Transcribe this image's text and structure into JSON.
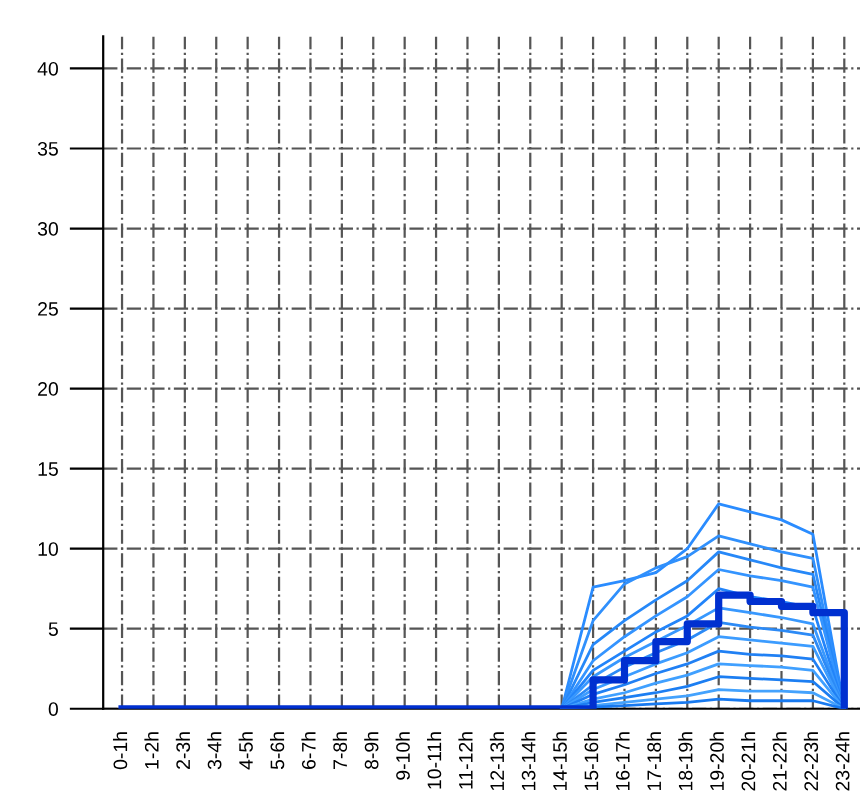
{
  "chart_data": {
    "type": "line",
    "categories": [
      "0-1h",
      "1-2h",
      "2-3h",
      "3-4h",
      "4-5h",
      "5-6h",
      "6-7h",
      "7-8h",
      "8-9h",
      "9-10h",
      "10-11h",
      "11-12h",
      "12-13h",
      "13-14h",
      "14-15h",
      "15-16h",
      "16-17h",
      "17-18h",
      "18-19h",
      "19-20h",
      "20-21h",
      "21-22h",
      "22-23h",
      "23-24h"
    ],
    "ylim": [
      0,
      42
    ],
    "yticks": [
      0,
      5,
      10,
      15,
      20,
      25,
      30,
      35,
      40
    ],
    "grid": true,
    "marker": "none",
    "line_style": "solid",
    "legend": false,
    "series": [
      {
        "color": "#2a8cff",
        "values": [
          null,
          null,
          null,
          null,
          null,
          null,
          null,
          null,
          null,
          null,
          null,
          null,
          null,
          null,
          0,
          7.6,
          8.0,
          8.5,
          10.0,
          12.8,
          12.3,
          11.8,
          10.9,
          0
        ]
      },
      {
        "color": "#3090fc",
        "values": [
          null,
          null,
          null,
          null,
          null,
          null,
          null,
          null,
          null,
          null,
          null,
          null,
          null,
          null,
          0,
          5.5,
          7.8,
          8.8,
          9.5,
          10.8,
          10.3,
          9.8,
          9.4,
          0
        ]
      },
      {
        "color": "#2688f8",
        "values": [
          null,
          null,
          null,
          null,
          null,
          null,
          null,
          null,
          null,
          null,
          null,
          null,
          null,
          null,
          0,
          4.0,
          5.5,
          6.8,
          8.0,
          9.8,
          9.3,
          8.8,
          8.4,
          0
        ]
      },
      {
        "color": "#3494ff",
        "values": [
          null,
          null,
          null,
          null,
          null,
          null,
          null,
          null,
          null,
          null,
          null,
          null,
          null,
          null,
          0,
          3.0,
          4.5,
          5.8,
          7.0,
          8.7,
          8.3,
          8.0,
          7.6,
          0
        ]
      },
      {
        "color": "#2284fa",
        "values": [
          null,
          null,
          null,
          null,
          null,
          null,
          null,
          null,
          null,
          null,
          null,
          null,
          null,
          null,
          0,
          2.4,
          3.6,
          4.8,
          5.8,
          7.5,
          7.0,
          6.7,
          6.3,
          0
        ]
      },
      {
        "color": "#3898fe",
        "values": [
          null,
          null,
          null,
          null,
          null,
          null,
          null,
          null,
          null,
          null,
          null,
          null,
          null,
          null,
          0,
          2.0,
          3.2,
          4.2,
          5.2,
          6.3,
          6.0,
          5.7,
          5.3,
          0
        ]
      },
      {
        "color": "#2c8af6",
        "values": [
          null,
          null,
          null,
          null,
          null,
          null,
          null,
          null,
          null,
          null,
          null,
          null,
          null,
          null,
          0,
          1.5,
          2.6,
          3.5,
          4.3,
          5.4,
          5.1,
          4.9,
          4.6,
          0
        ]
      },
      {
        "color": "#3c9cff",
        "values": [
          null,
          null,
          null,
          null,
          null,
          null,
          null,
          null,
          null,
          null,
          null,
          null,
          null,
          null,
          0,
          1.2,
          2.0,
          2.8,
          3.5,
          4.5,
          4.3,
          4.1,
          3.9,
          0
        ]
      },
      {
        "color": "#2080f4",
        "values": [
          null,
          null,
          null,
          null,
          null,
          null,
          null,
          null,
          null,
          null,
          null,
          null,
          null,
          null,
          0,
          0.9,
          1.5,
          2.2,
          2.8,
          3.6,
          3.4,
          3.3,
          3.1,
          0
        ]
      },
      {
        "color": "#40a0ff",
        "values": [
          null,
          null,
          null,
          null,
          null,
          null,
          null,
          null,
          null,
          null,
          null,
          null,
          null,
          null,
          0,
          0.6,
          1.0,
          1.6,
          2.1,
          2.8,
          2.7,
          2.6,
          2.4,
          0
        ]
      },
      {
        "color": "#1c7ef2",
        "values": [
          null,
          null,
          null,
          null,
          null,
          null,
          null,
          null,
          null,
          null,
          null,
          null,
          null,
          null,
          0,
          0.4,
          0.7,
          1.0,
          1.4,
          2.0,
          1.9,
          1.8,
          1.7,
          0
        ]
      },
      {
        "color": "#44a2fd",
        "values": [
          null,
          null,
          null,
          null,
          null,
          null,
          null,
          null,
          null,
          null,
          null,
          null,
          null,
          null,
          0,
          0.2,
          0.4,
          0.6,
          0.8,
          1.2,
          1.1,
          1.1,
          1.0,
          0
        ]
      },
      {
        "color": "#187af0",
        "values": [
          null,
          null,
          null,
          null,
          null,
          null,
          null,
          null,
          null,
          null,
          null,
          null,
          null,
          null,
          0,
          0.1,
          0.2,
          0.3,
          0.4,
          0.6,
          0.5,
          0.5,
          0.5,
          0
        ]
      },
      {
        "type": "step",
        "color": "#0030d0",
        "values": [
          0,
          0,
          0,
          0,
          0,
          0,
          0,
          0,
          0,
          0,
          0,
          0,
          0,
          0,
          0,
          1.8,
          3.0,
          4.2,
          5.3,
          7.1,
          6.7,
          6.4,
          6.0,
          0
        ]
      }
    ]
  }
}
